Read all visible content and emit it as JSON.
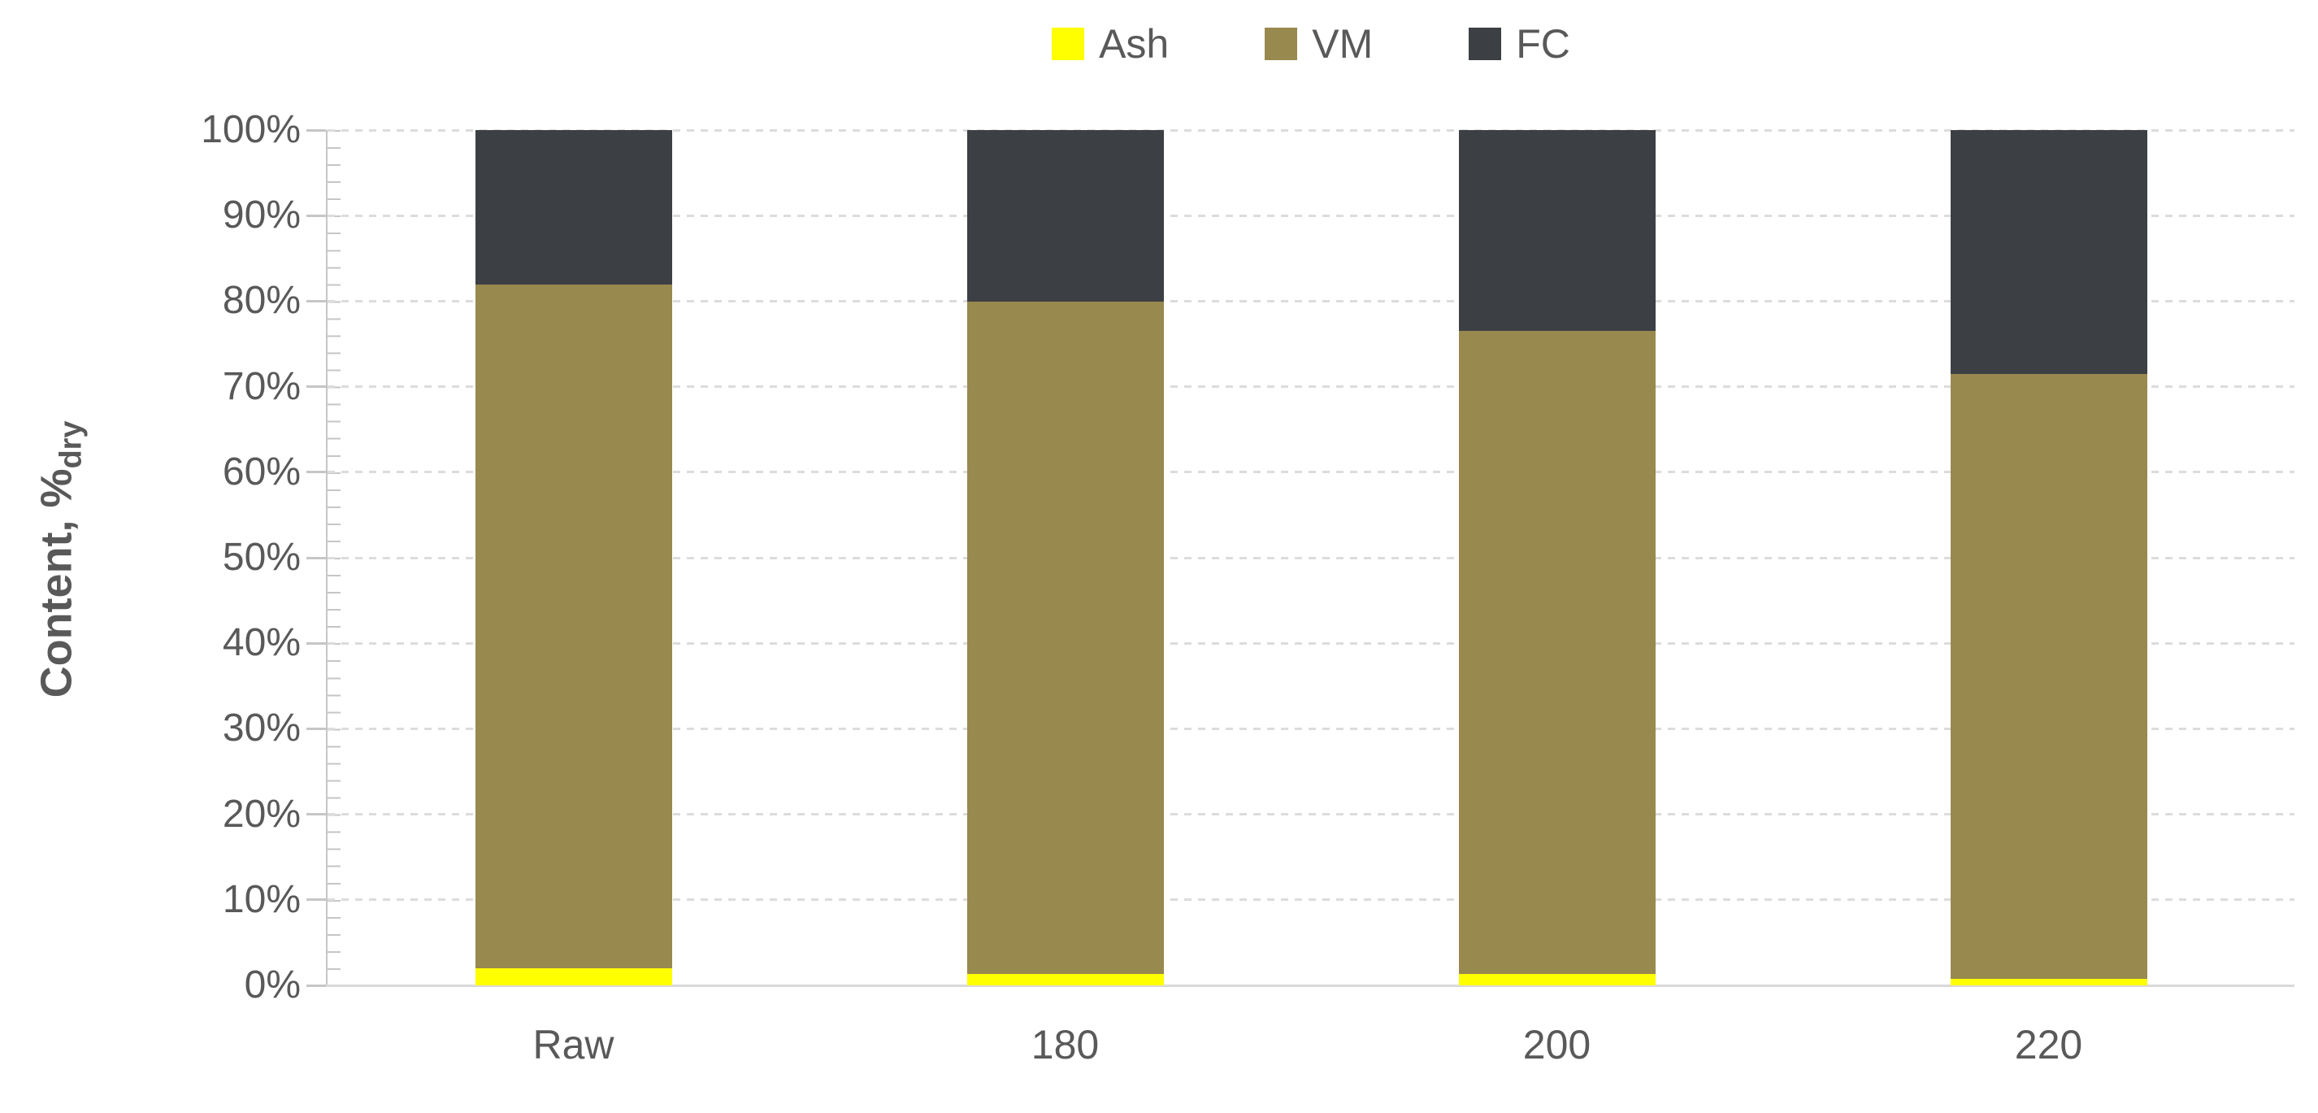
{
  "chart_data": {
    "type": "bar",
    "variant": "stacked-100-percent-column",
    "title": "",
    "ylabel_main": "Content, %",
    "ylabel_sub": "dry",
    "xlabel": "",
    "categories": [
      "Raw",
      "180",
      "200",
      "220"
    ],
    "series": [
      {
        "name": "Ash",
        "color": "#ffff00",
        "values": [
          2.0,
          1.3,
          1.3,
          0.8
        ]
      },
      {
        "name": "VM",
        "color": "#98894f",
        "values": [
          79.9,
          78.6,
          75.2,
          70.7
        ]
      },
      {
        "name": "FC",
        "color": "#3c3f43",
        "values": [
          18.1,
          20.1,
          23.5,
          28.5
        ]
      }
    ],
    "stack_tops_percent": {
      "Ash": [
        2.0,
        1.3,
        1.3,
        0.8
      ],
      "VM": [
        81.9,
        79.9,
        76.5,
        71.5
      ],
      "FC": [
        100,
        100,
        100,
        100
      ]
    },
    "y_ticks": [
      "0%",
      "10%",
      "20%",
      "30%",
      "40%",
      "50%",
      "60%",
      "70%",
      "80%",
      "90%",
      "100%"
    ],
    "ylim": [
      0,
      100
    ],
    "y_minor_unit_percent": 2,
    "grid": "dashed-horizontal",
    "legend_position": "top-center",
    "legend": [
      {
        "label": "Ash",
        "color": "#ffff00"
      },
      {
        "label": "VM",
        "color": "#98894f"
      },
      {
        "label": "FC",
        "color": "#3c3f43"
      }
    ],
    "style_colors": {
      "text": "#595959",
      "axis_line": "#c6c6c6",
      "gridline": "#dcdcdc",
      "baseline": "#d9d9d9",
      "background": "#ffffff"
    }
  }
}
